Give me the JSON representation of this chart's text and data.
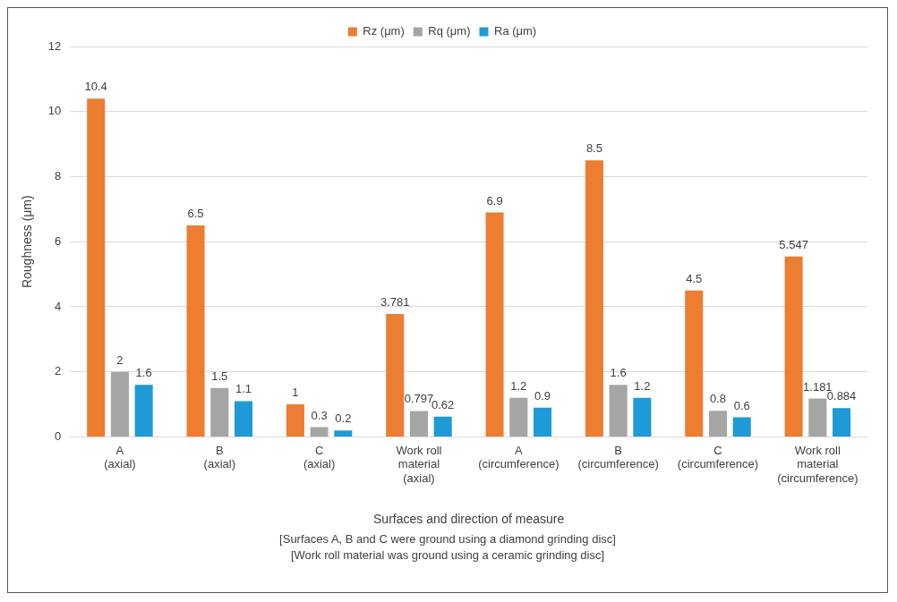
{
  "chart_data": {
    "type": "bar",
    "xlabel": "Surfaces and direction of measure",
    "ylabel": "Roughness (μm)",
    "categories": [
      "A\n(axial)",
      "B\n(axial)",
      "C\n(axial)",
      "Work roll\nmaterial\n(axial)",
      "A\n(circumference)",
      "B\n(circumference)",
      "C\n(circumference)",
      "Work roll\nmaterial\n(circumference)"
    ],
    "series": [
      {
        "name": "Rz (μm)",
        "color": "#ed7d31",
        "values": [
          10.4,
          6.5,
          1,
          3.781,
          6.9,
          8.5,
          4.5,
          5.547
        ]
      },
      {
        "name": "Rq (μm)",
        "color": "#a5a5a5",
        "values": [
          2,
          1.5,
          0.3,
          0.797,
          1.2,
          1.6,
          0.8,
          1.181
        ]
      },
      {
        "name": "Ra (μm)",
        "color": "#1e9ad6",
        "values": [
          1.6,
          1.1,
          0.2,
          0.62,
          0.9,
          1.2,
          0.6,
          0.884
        ]
      }
    ],
    "ylim": [
      0,
      12
    ],
    "yticks": [
      0,
      2,
      4,
      6,
      8,
      10,
      12
    ],
    "grid": "y",
    "legend": "top",
    "data_labels": true,
    "annotations": [
      "[Surfaces A, B and C were ground using a diamond grinding disc]",
      "[Work roll material was ground using a ceramic grinding disc]"
    ]
  }
}
